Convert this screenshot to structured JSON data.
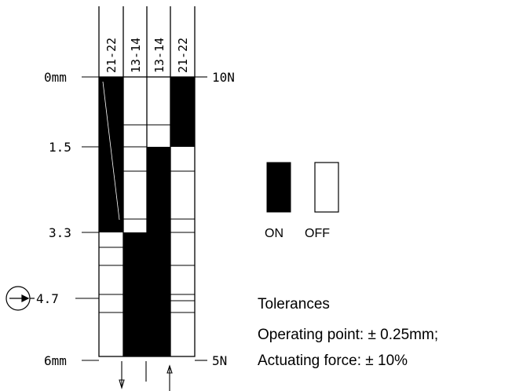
{
  "columns": [
    {
      "label": "21-22",
      "fill": "#000000"
    },
    {
      "label": "13-14",
      "fill": "#000000"
    },
    {
      "label": "13-14",
      "fill": "#000000"
    },
    {
      "label": "21-22",
      "fill": "#000000"
    }
  ],
  "travel_marks": {
    "top": "0mm",
    "m1": "1.5",
    "m2": "3.3",
    "m3": "4.7",
    "bottom": "6mm"
  },
  "force_marks": {
    "top": "10N",
    "bottom": "5N"
  },
  "legend": {
    "on": "ON",
    "off": "OFF"
  },
  "tolerances": {
    "heading": "Tolerances",
    "operating": "Operating point: ± 0.25mm;",
    "force": "Actuating force: ± 10%"
  },
  "colors": {
    "on": "#000000",
    "off": "#ffffff",
    "line": "#000000"
  },
  "icons": {
    "operating_point": "arrow-circle-icon",
    "travel_down": "arrow-down-icon",
    "travel_up": "arrow-up-icon"
  }
}
